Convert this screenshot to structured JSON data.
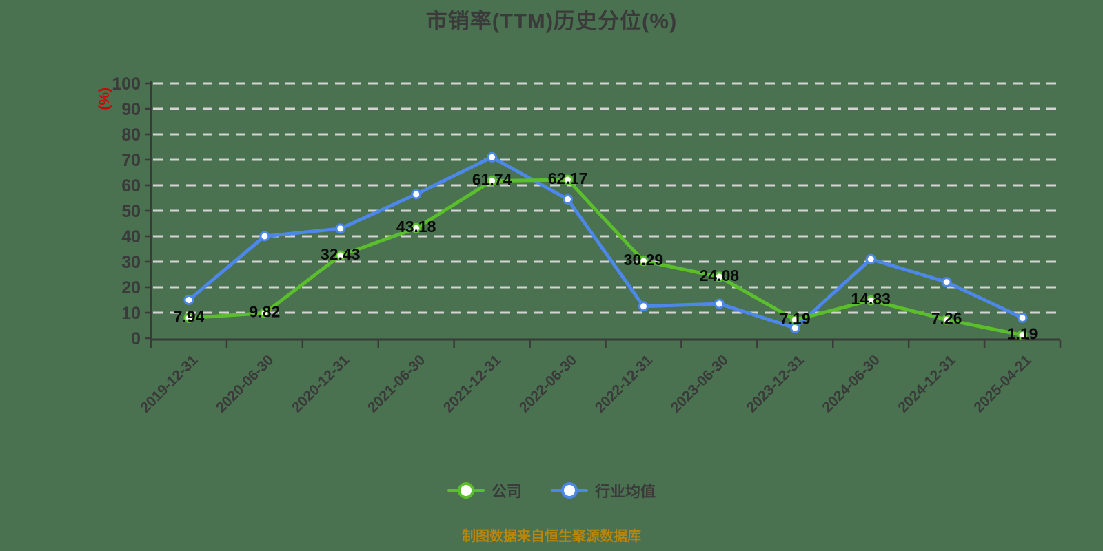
{
  "title": "市销率(TTM)历史分位(%)",
  "y_axis_name": "(%)",
  "footer": "制图数据来自恒生聚源数据库",
  "legend": [
    {
      "label": "公司",
      "color": "#5bbe2d"
    },
    {
      "label": "行业均值",
      "color": "#4d87e8"
    }
  ],
  "colors": {
    "background": "#4a7150",
    "title_text": "#3a3a3a",
    "axis_text": "#3a3a3a",
    "gridline": "#d4d4d4",
    "company_green": "#5bbe2d",
    "industry_blue": "#4d87e8",
    "y_axis_name_red": "#d60000",
    "footer_orange": "#b8860b",
    "data_label_black": "#0b0b0b",
    "point_fill": "#ffffff"
  },
  "chart_data": {
    "type": "line",
    "title": "市销率(TTM)历史分位(%)",
    "ylabel": "(%)",
    "ylim": [
      0,
      100
    ],
    "y_ticks": [
      0,
      10,
      20,
      30,
      40,
      50,
      60,
      70,
      80,
      90,
      100
    ],
    "grid": "horizontal-dashed",
    "legend_position": "bottom",
    "categories": [
      "2019-12-31",
      "2020-06-30",
      "2020-12-31",
      "2021-06-30",
      "2021-12-31",
      "2022-06-30",
      "2022-12-31",
      "2023-06-30",
      "2023-12-31",
      "2024-06-30",
      "2024-12-31",
      "2025-04-21"
    ],
    "series": [
      {
        "name": "公司",
        "color": "#5bbe2d",
        "show_labels": true,
        "values": [
          7.94,
          9.82,
          32.43,
          43.18,
          61.74,
          62.17,
          30.29,
          24.08,
          7.19,
          14.83,
          7.26,
          1.19
        ],
        "labels": [
          "7.94",
          "9.82",
          "32.43",
          "43.18",
          "61.74",
          "62.17",
          "30.29",
          "24.08",
          "7.19",
          "14.83",
          "7.26",
          "1.19"
        ]
      },
      {
        "name": "行业均值",
        "color": "#4d87e8",
        "show_labels": false,
        "values": [
          15,
          40,
          43,
          56.5,
          71,
          54.5,
          12.5,
          13.5,
          4,
          31,
          22,
          8
        ],
        "labels": []
      }
    ]
  }
}
